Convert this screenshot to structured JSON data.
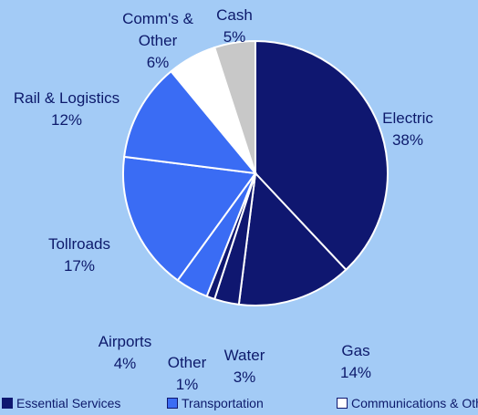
{
  "chart_data": {
    "type": "pie",
    "categories": [
      "Electric",
      "Gas",
      "Water",
      "Other",
      "Airports",
      "Tollroads",
      "Rail & Logistics",
      "Comm's & Other",
      "Cash"
    ],
    "values": [
      38,
      14,
      3,
      1,
      4,
      17,
      12,
      6,
      5
    ],
    "value_labels": [
      "38%",
      "14%",
      "3%",
      "1%",
      "4%",
      "17%",
      "12%",
      "6%",
      "5%"
    ],
    "colors": [
      "#0f1770",
      "#0f1770",
      "#0f1770",
      "#0f1770",
      "#3a6cf4",
      "#3a6cf4",
      "#3a6cf4",
      "#ffffff",
      "#c8c8c8"
    ],
    "legend": [
      {
        "name": "Essential Services",
        "color": "#0f1770"
      },
      {
        "name": "Transportation",
        "color": "#3a6cf4"
      },
      {
        "name": "Communications & Other",
        "color": "#ffffff"
      }
    ]
  }
}
